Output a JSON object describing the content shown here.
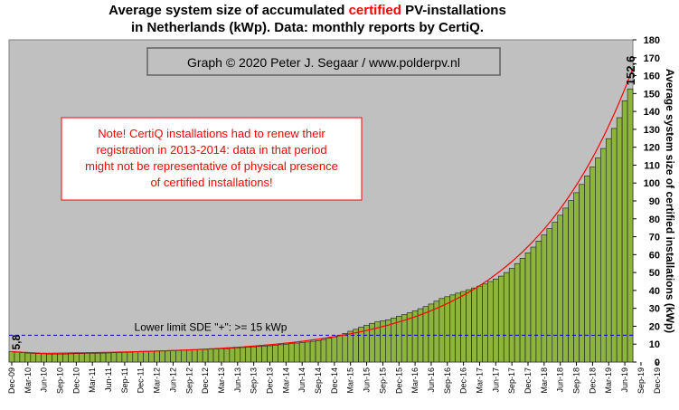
{
  "title": {
    "line1_a": "Average system size of accumulated ",
    "line1_b": "certified",
    "line1_c": " PV-installations",
    "line2": "in Netherlands (kWp). Data: monthly reports by CertiQ."
  },
  "credit": "Graph © 2020 Peter J. Segaar / www.polderpv.nl",
  "note": {
    "lines": [
      "Note! CertiQ installations had to renew their",
      "registration in 2013-2014:  data in that period",
      "might not be representative of physical presence",
      "of certified installations!"
    ]
  },
  "reference_line": {
    "label": "Lower limit  SDE \"+\":   >= 15 kWp",
    "value": 15
  },
  "labels": {
    "first": "5,8",
    "last": "152,6"
  },
  "colors": {
    "bar": "#8db43c",
    "plot_bg": "#c0c0c0",
    "trend": "#ff0000",
    "ref": "#0000cc",
    "title_accent": "#ff0000",
    "note_text": "#ff0000",
    "note_border": "#ff0000"
  },
  "chart_data": {
    "type": "bar",
    "ylabel": "Average system size of certified installations  (kWp)",
    "ylim": [
      0,
      180
    ],
    "yticks": [
      0,
      10,
      20,
      30,
      40,
      50,
      60,
      70,
      80,
      90,
      100,
      110,
      120,
      130,
      140,
      150,
      160,
      170,
      180
    ],
    "y_axis_position": "right",
    "grid": false,
    "x_tick_labels": [
      "Dec-09",
      "Mar-10",
      "Jun-10",
      "Sep-10",
      "Dec-10",
      "Mar-11",
      "Jun-11",
      "Sep-11",
      "Dec-11",
      "Mar-12",
      "Jun-12",
      "Sep-12",
      "Dec-12",
      "Mar-13",
      "Jun-13",
      "Sep-13",
      "Dec-13",
      "Mar-14",
      "Jun-14",
      "Sep-14",
      "Dec-14",
      "Mar-15",
      "Jun-15",
      "Sep-15",
      "Dec-15",
      "Mar-16",
      "Jun-16",
      "Sep-16",
      "Dec-16",
      "Mar-17",
      "Jun-17",
      "Sep-17",
      "Dec-17",
      "Mar-18",
      "Jun-18",
      "Sep-18",
      "Dec-18",
      "Mar-19",
      "Jun-19",
      "Sep-19",
      "Dec-19"
    ],
    "series": [
      {
        "values": [
          5.8,
          5.6,
          5.3,
          5.0,
          4.8,
          4.7,
          4.6,
          4.5,
          4.5,
          4.5,
          4.5,
          4.6,
          4.7,
          4.7,
          4.8,
          4.8,
          4.9,
          5.0,
          5.1,
          5.2,
          5.3,
          5.4,
          5.5,
          5.7,
          5.8,
          6.0,
          6.1,
          6.2,
          6.3,
          6.4,
          6.5,
          6.6,
          6.7,
          6.8,
          6.9,
          7.0,
          7.1,
          7.2,
          7.3,
          7.4,
          7.5,
          7.7,
          7.9,
          8.1,
          8.3,
          8.5,
          8.7,
          8.9,
          9.1,
          9.4,
          9.7,
          10.0,
          10.3,
          10.6,
          10.9,
          11.2,
          11.6,
          12.0,
          12.6,
          13.3,
          14.0,
          15.0,
          16.0,
          17.2,
          18.3,
          19.5,
          20.6,
          21.6,
          22.4,
          23.0,
          23.6,
          24.6,
          25.6,
          26.5,
          27.5,
          28.6,
          29.8,
          31.0,
          32.4,
          34.0,
          35.5,
          36.5,
          37.5,
          38.5,
          39.4,
          40.4,
          41.4,
          42.4,
          43.6,
          45.0,
          46.4,
          48.0,
          50.0,
          52.3,
          55.0,
          58.0,
          61.0,
          64.2,
          67.6,
          71.0,
          74.5,
          78.1,
          82.0,
          86.0,
          90.2,
          94.6,
          99.2,
          104.0,
          109.0,
          114.0,
          119.3,
          124.8,
          130.5,
          136.5,
          146.0,
          152.6
        ]
      }
    ],
    "trendline": {
      "type": "exponential",
      "name": ""
    }
  }
}
